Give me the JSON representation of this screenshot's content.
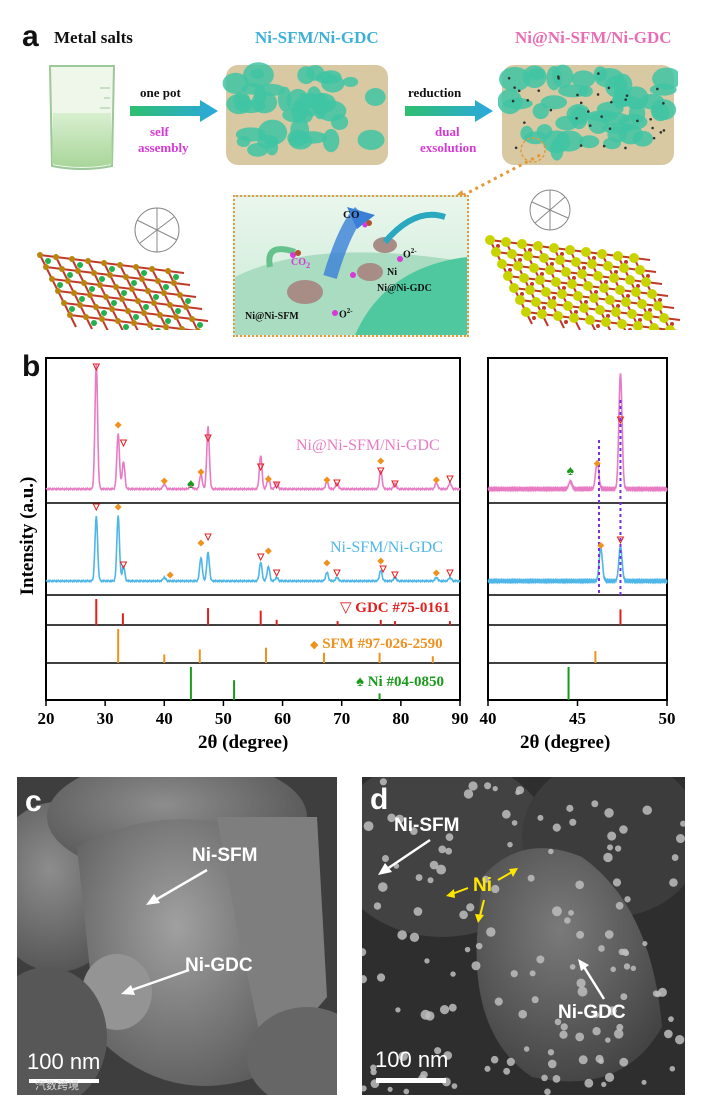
{
  "panel_a": {
    "letter": "a",
    "metal_salts": "Metal salts",
    "title_mid": "Ni-SFM/Ni-GDC",
    "title_right": "Ni@Ni-SFM/Ni-GDC",
    "arrow1_top": "one pot",
    "arrow1_bottom": [
      "self",
      "assembly"
    ],
    "arrow2_top": "reduction",
    "arrow2_bottom": [
      "dual",
      "exsolution"
    ],
    "inset": {
      "co": "CO",
      "co2": "CO",
      "co2_sub": "2",
      "o2_a": "O",
      "o2_b": "O",
      "o2_c": "O",
      "o2_sup": "2-",
      "ni": "Ni",
      "ni_gdc": "Ni@Ni-GDC",
      "ni_sfm": "Ni@Ni-SFM"
    },
    "colors": {
      "title_mid": "#3fb0d8",
      "title_right": "#e86eb4",
      "magenta_text": "#d63ad6",
      "inset_border": "#e49a3c"
    }
  },
  "panel_b": {
    "letter": "b",
    "ylabel": "Intensity (a.u.)",
    "xlabel": "2θ (degree)",
    "label_top": "Ni@Ni-SFM/Ni-GDC",
    "label_mid": "Ni-SFM/Ni-GDC",
    "ref1": "GDC #75-0161",
    "ref2": "SFM #97-026-2590",
    "ref3": "Ni #04-0850",
    "ref1_symbol": "▽",
    "ref2_symbol": "◆",
    "ref3_symbol": "♠",
    "colors": {
      "top": "#e87cc4",
      "mid": "#4fb6e8",
      "gdc": "#e0201f",
      "sfm": "#f0911e",
      "ni": "#1a9a1a",
      "dashed": "#7a2ee0"
    }
  },
  "chart_data": [
    {
      "type": "line",
      "title": "",
      "xlabel": "2θ (degree)",
      "ylabel": "Intensity (a.u.)",
      "xlim": [
        20,
        90
      ],
      "xticks": [
        "20",
        "30",
        "40",
        "50",
        "60",
        "70",
        "80",
        "90"
      ],
      "series": [
        {
          "name": "Ni@Ni-SFM/Ni-GDC",
          "peaks": [
            [
              28.5,
              100
            ],
            [
              32.2,
              45
            ],
            [
              33.1,
              22
            ],
            [
              40.0,
              4
            ],
            [
              44.5,
              3
            ],
            [
              46.2,
              12
            ],
            [
              47.4,
              50
            ],
            [
              56.3,
              27
            ],
            [
              57.6,
              10
            ],
            [
              59.0,
              5
            ],
            [
              67.5,
              6
            ],
            [
              69.2,
              5
            ],
            [
              76.6,
              15
            ],
            [
              79.0,
              5
            ],
            [
              86.0,
              5
            ],
            [
              88.3,
              5
            ]
          ]
        },
        {
          "name": "Ni-SFM/Ni-GDC",
          "peaks": [
            [
              28.5,
              90
            ],
            [
              32.2,
              92
            ],
            [
              33.1,
              20
            ],
            [
              40.0,
              5
            ],
            [
              46.2,
              33
            ],
            [
              47.4,
              40
            ],
            [
              56.3,
              26
            ],
            [
              57.6,
              20
            ],
            [
              59.0,
              5
            ],
            [
              67.5,
              12
            ],
            [
              69.2,
              5
            ],
            [
              76.6,
              15
            ],
            [
              79.0,
              5
            ],
            [
              86.0,
              5
            ],
            [
              88.3,
              5
            ]
          ]
        }
      ],
      "references": [
        {
          "name": "GDC #75-0161",
          "x": [
            28.5,
            33.0,
            47.4,
            56.3,
            59.0,
            69.3,
            76.6,
            79.0,
            88.3
          ],
          "h": [
            1.0,
            0.45,
            0.65,
            0.55,
            0.2,
            0.15,
            0.2,
            0.15,
            0.15
          ]
        },
        {
          "name": "SFM #97-026-2590",
          "x": [
            32.2,
            40.0,
            46.0,
            57.2,
            67.0,
            76.4,
            85.4
          ],
          "h": [
            1.0,
            0.25,
            0.4,
            0.45,
            0.3,
            0.3,
            0.2
          ]
        },
        {
          "name": "Ni #04-0850",
          "x": [
            44.5,
            51.8,
            76.4
          ],
          "h": [
            1.0,
            0.6,
            0.2
          ]
        }
      ]
    },
    {
      "type": "line",
      "title": "",
      "xlabel": "2θ (degree)",
      "xlim": [
        40,
        50
      ],
      "xticks": [
        "40",
        "45",
        "50"
      ],
      "series": [
        {
          "name": "Ni@Ni-SFM/Ni-GDC",
          "peaks": [
            [
              44.6,
              6
            ],
            [
              46.1,
              22
            ],
            [
              47.4,
              92
            ]
          ]
        },
        {
          "name": "Ni-SFM/Ni-GDC",
          "peaks": [
            [
              46.3,
              46
            ],
            [
              47.4,
              48
            ]
          ]
        }
      ],
      "references": [
        {
          "name": "GDC #75-0161",
          "x": [
            47.4
          ],
          "h": [
            0.6
          ]
        },
        {
          "name": "SFM #97-026-2590",
          "x": [
            46.0
          ],
          "h": [
            0.35
          ]
        },
        {
          "name": "Ni #04-0850",
          "x": [
            44.5
          ],
          "h": [
            1.0
          ]
        }
      ]
    }
  ],
  "panel_c": {
    "letter": "c",
    "label1": "Ni-SFM",
    "label2": "Ni-GDC",
    "scale": "100 nm",
    "watermark": "汽数跨境"
  },
  "panel_d": {
    "letter": "d",
    "label1": "Ni-SFM",
    "label2": "Ni",
    "label3": "Ni-GDC",
    "scale": "100 nm"
  }
}
